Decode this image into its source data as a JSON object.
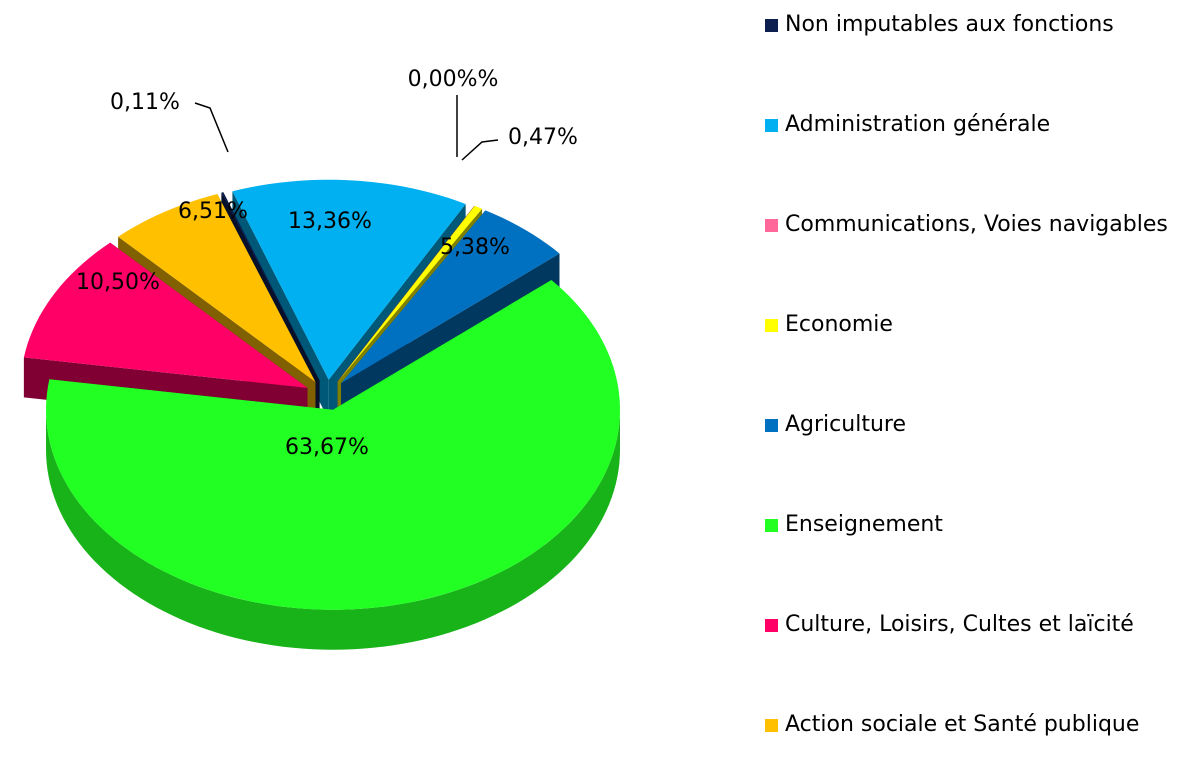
{
  "chart_data": {
    "type": "pie3d",
    "categories": [
      "Non imputables aux fonctions",
      "Administration générale",
      "Communications, Voies navigables",
      "Economie",
      "Agriculture",
      "Enseignement",
      "Culture, Loisirs, Cultes et laïcité",
      "Action sociale et Santé publique"
    ],
    "values": [
      0.11,
      13.36,
      0.0,
      0.47,
      5.38,
      63.67,
      10.5,
      6.51
    ],
    "value_labels": [
      "0,11%",
      "13,36%",
      "0,00%%",
      "0,47%",
      "5,38%",
      "63,67%",
      "10,50%",
      "6,51%"
    ],
    "colors": [
      "#0d1f4f",
      "#00b0f0",
      "#ff6699",
      "#ffff00",
      "#0070c0",
      "#22ff22",
      "#ff0066",
      "#ffc000"
    ],
    "legend": "right"
  }
}
